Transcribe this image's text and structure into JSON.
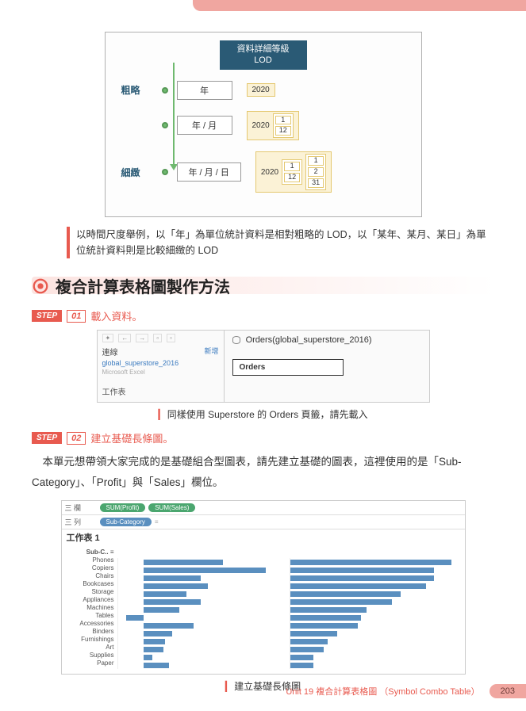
{
  "lod": {
    "header_l1": "資料詳細等級",
    "header_l2": "LOD",
    "coarse_label": "粗略",
    "fine_label": "細緻",
    "rows": [
      {
        "granule": "年",
        "sample_year": "2020"
      },
      {
        "granule": "年 / 月",
        "sample_year": "2020",
        "cells": [
          "1",
          "12"
        ]
      },
      {
        "granule": "年 / 月 / 日",
        "sample_year": "2020",
        "cells1": [
          "1",
          "12"
        ],
        "cells2": [
          "1",
          "2",
          "31"
        ]
      }
    ]
  },
  "lod_caption": "以時間尺度舉例，以「年」為單位統計資料是相對粗略的 LOD，以「某年、某月、某日」為單位統計資料則是比較細緻的 LOD",
  "section_title": "複合計算表格圖製作方法",
  "step1": {
    "badge": "STEP",
    "num": "01",
    "text": "載入資料。"
  },
  "ds": {
    "link_label": "連線",
    "new_label": "新增",
    "conn_name": "global_superstore_2016",
    "conn_sub": "Microsoft Excel",
    "ws_label": "工作表",
    "title": "Orders(global_superstore_2016)",
    "sheet": "Orders",
    "caption": "同樣使用 Superstore 的 Orders 頁籤，請先載入"
  },
  "step2": {
    "badge": "STEP",
    "num": "02",
    "text": "建立基礎長條圖。"
  },
  "body_para": "本單元想帶領大家完成的是基礎組合型圖表，請先建立基礎的圖表，這裡使用的是「Sub-Category」、「Profit」與「Sales」欄位。",
  "chart": {
    "row_label": "三 欄",
    "col_label": "三 列",
    "pill_profit": "SUM(Profit)",
    "pill_sales": "SUM(Sales)",
    "pill_subcat": "Sub-Category",
    "ws_title": "工作表 1",
    "cat_head": "Sub-C.. ≡",
    "categories": [
      "Phones",
      "Copiers",
      "Chairs",
      "Bookcases",
      "Storage",
      "Appliances",
      "Machines",
      "Tables",
      "Accessories",
      "Binders",
      "Furnishings",
      "Art",
      "Supplies",
      "Paper"
    ],
    "profit_vals": [
      55,
      85,
      40,
      45,
      30,
      40,
      25,
      -12,
      35,
      20,
      15,
      14,
      6,
      18
    ],
    "sales_vals": [
      95,
      85,
      85,
      80,
      65,
      60,
      45,
      42,
      40,
      28,
      22,
      20,
      14,
      14
    ],
    "bar_color": "#5a8fbf",
    "caption": "建立基礎長條圖"
  },
  "footer": {
    "unit": "Unit 19  複合計算表格圖 （Symbol Combo Table）",
    "page": "203"
  }
}
